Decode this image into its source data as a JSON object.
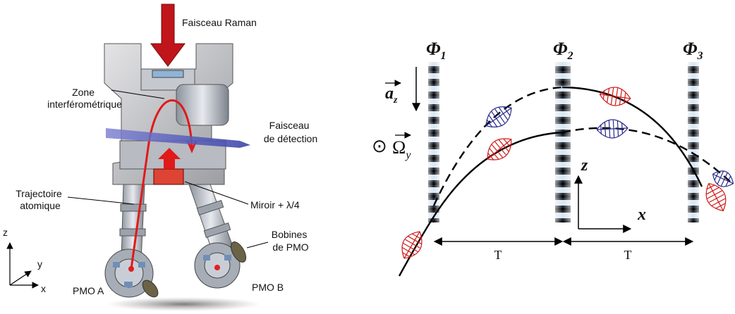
{
  "apparatus": {
    "labels": {
      "raman": [
        "Faisceau Raman"
      ],
      "zone": [
        "Zone",
        "interférométrique"
      ],
      "detection": [
        "Faisceau",
        "de détection"
      ],
      "trajectory": [
        "Trajectoire",
        "atomique"
      ],
      "mirror": [
        "Miroir + λ/4"
      ],
      "coils": [
        "Bobines",
        "de PMO"
      ],
      "mot_a": [
        "PMO A"
      ],
      "mot_b": [
        "PMO B"
      ]
    },
    "axes": {
      "z": "z",
      "y": "y",
      "x": "x"
    }
  },
  "scheme": {
    "phases": [
      {
        "symbol": "Φ",
        "index": "1"
      },
      {
        "symbol": "Φ",
        "index": "2"
      },
      {
        "symbol": "Φ",
        "index": "3"
      }
    ],
    "acceleration": {
      "symbol": "a",
      "index": "z"
    },
    "rotation": {
      "marker": "⊙",
      "symbol": "Ω",
      "index": "y"
    },
    "axes": {
      "z": "z",
      "x": "x"
    },
    "intervals": [
      "T",
      "T"
    ]
  }
}
